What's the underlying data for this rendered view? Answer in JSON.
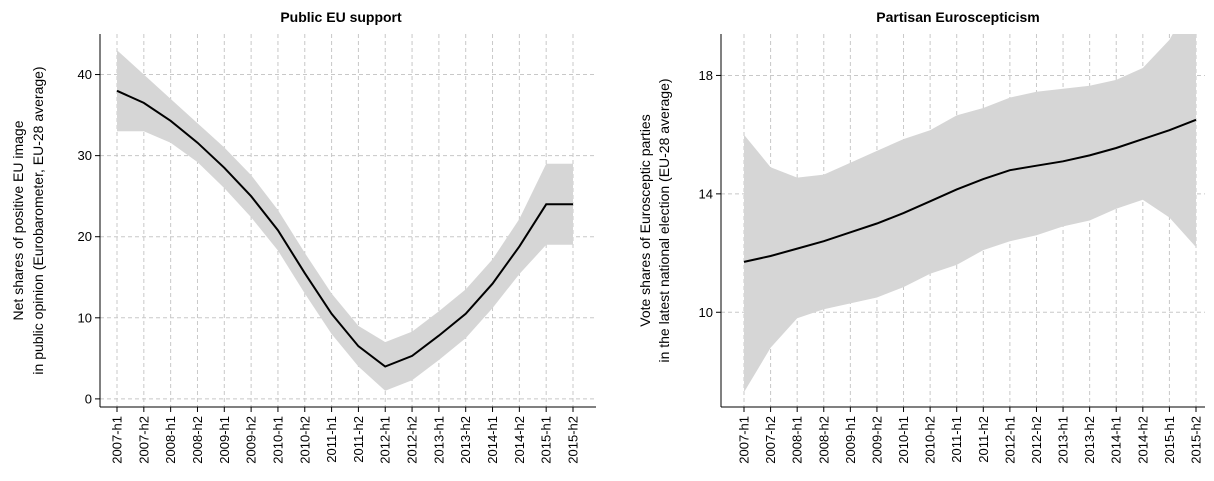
{
  "chart_data": [
    {
      "type": "line",
      "title": "Public EU support",
      "xlabel": "",
      "ylabel": [
        "Net shares of positive EU image",
        "in public opinion (Eurobarometer, EU-28 average)"
      ],
      "x": [
        "2007-h1",
        "2007-h2",
        "2008-h1",
        "2008-h2",
        "2009-h1",
        "2009-h2",
        "2010-h1",
        "2010-h2",
        "2011-h1",
        "2011-h2",
        "2012-h1",
        "2012-h2",
        "2013-h1",
        "2013-h2",
        "2014-h1",
        "2014-h2",
        "2015-h1",
        "2015-h2"
      ],
      "ylim": [
        -1,
        45
      ],
      "yticks": [
        0,
        10,
        20,
        30,
        40
      ],
      "grid": true,
      "series": [
        {
          "values": [
            38.0,
            36.5,
            34.3,
            31.6,
            28.5,
            25.0,
            20.8,
            15.5,
            10.5,
            6.5,
            4.0,
            5.3,
            7.8,
            10.5,
            14.2,
            18.8,
            24.0,
            24.0
          ],
          "lower": [
            33.0,
            33.0,
            31.6,
            29.2,
            26.0,
            22.4,
            18.3,
            13.0,
            8.0,
            4.0,
            1.0,
            2.3,
            4.8,
            7.5,
            11.2,
            15.4,
            19.0,
            19.0
          ],
          "upper": [
            43.0,
            40.0,
            37.0,
            34.0,
            31.0,
            27.6,
            23.3,
            18.0,
            13.0,
            9.0,
            7.0,
            8.3,
            10.8,
            13.5,
            17.2,
            22.2,
            29.0,
            29.0
          ]
        }
      ]
    },
    {
      "type": "line",
      "title": "Partisan Euroscepticism",
      "xlabel": "",
      "ylabel": [
        "Vote shares of Eurosceptic parties",
        "in the latest national election (EU-28 average)"
      ],
      "x": [
        "2007-h1",
        "2007-h2",
        "2008-h1",
        "2008-h2",
        "2009-h1",
        "2009-h2",
        "2010-h1",
        "2010-h2",
        "2011-h1",
        "2011-h2",
        "2012-h1",
        "2012-h2",
        "2013-h1",
        "2013-h2",
        "2014-h1",
        "2014-h2",
        "2015-h1",
        "2015-h2"
      ],
      "ylim": [
        6.8,
        19.4
      ],
      "yticks": [
        10,
        14,
        18
      ],
      "grid": true,
      "series": [
        {
          "values": [
            11.7,
            11.9,
            12.15,
            12.4,
            12.7,
            13.0,
            13.35,
            13.75,
            14.15,
            14.5,
            14.8,
            14.95,
            15.1,
            15.3,
            15.55,
            15.85,
            16.15,
            16.5
          ],
          "lower": [
            7.3,
            8.8,
            9.8,
            10.1,
            10.3,
            10.5,
            10.85,
            11.3,
            11.6,
            12.1,
            12.4,
            12.6,
            12.9,
            13.1,
            13.5,
            13.8,
            13.2,
            12.2
          ],
          "upper": [
            16.0,
            14.9,
            14.55,
            14.65,
            15.05,
            15.45,
            15.85,
            16.15,
            16.65,
            16.9,
            17.25,
            17.45,
            17.55,
            17.65,
            17.85,
            18.25,
            19.2,
            20.8
          ]
        }
      ]
    }
  ]
}
